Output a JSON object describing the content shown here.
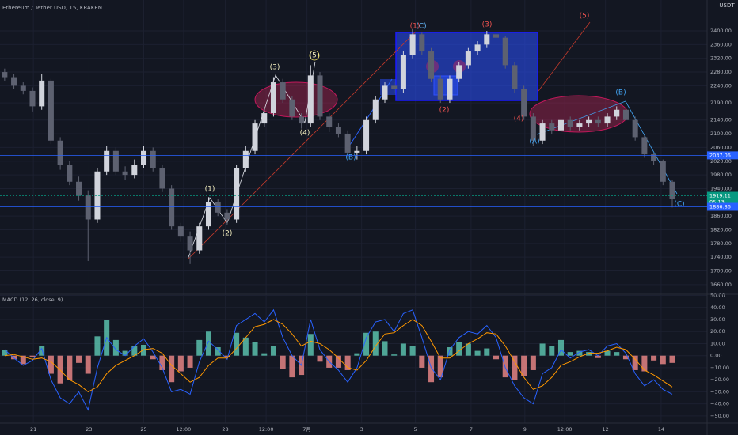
{
  "header": {
    "symbol": "Ethereum / Tether USD, 15, KRAKEN",
    "currency": "USDT"
  },
  "chart_data": [
    {
      "type": "candlestick",
      "x": [
        0,
        1,
        2,
        3,
        4,
        5,
        6,
        7,
        8,
        9,
        10,
        11,
        12,
        13,
        14,
        15,
        16,
        17,
        18,
        19,
        20,
        21,
        22,
        23,
        24,
        25,
        26,
        27,
        28,
        29,
        30,
        31,
        32,
        33,
        34,
        35,
        36,
        37,
        38,
        39,
        40,
        41,
        42,
        43,
        44,
        45,
        46,
        47,
        48,
        49,
        50,
        51,
        52,
        53,
        54,
        55,
        56,
        57,
        58,
        59,
        60,
        61,
        62,
        63,
        64,
        65,
        66,
        67,
        68,
        69,
        70,
        71,
        72
      ],
      "open": [
        2280,
        2265,
        2240,
        2225,
        2180,
        2255,
        2080,
        2010,
        1960,
        1920,
        1850,
        1990,
        2050,
        1990,
        1980,
        2010,
        2050,
        2000,
        1940,
        1830,
        1800,
        1760,
        1830,
        1900,
        1870,
        1850,
        2000,
        2050,
        2130,
        2160,
        2250,
        2200,
        2150,
        2130,
        2270,
        2150,
        2120,
        2100,
        2045,
        2050,
        2140,
        2200,
        2240,
        2230,
        2330,
        2390,
        2340,
        2260,
        2200,
        2260,
        2300,
        2340,
        2360,
        2390,
        2380,
        2300,
        2230,
        2150,
        2080,
        2130,
        2110,
        2140,
        2120,
        2130,
        2140,
        2130,
        2150,
        2170,
        2140,
        2090,
        2040,
        2020,
        1960
      ],
      "high": [
        2290,
        2275,
        2250,
        2235,
        2275,
        2260,
        2090,
        2020,
        1975,
        1935,
        2000,
        2065,
        2060,
        2005,
        2025,
        2065,
        2060,
        2010,
        1950,
        1840,
        1815,
        1840,
        1915,
        1910,
        1880,
        2010,
        2065,
        2140,
        2175,
        2265,
        2260,
        2210,
        2160,
        2300,
        2280,
        2160,
        2130,
        2110,
        2065,
        2150,
        2210,
        2250,
        2250,
        2340,
        2405,
        2395,
        2350,
        2270,
        2270,
        2310,
        2350,
        2370,
        2400,
        2395,
        2385,
        2310,
        2240,
        2160,
        2140,
        2140,
        2150,
        2150,
        2140,
        2150,
        2150,
        2160,
        2180,
        2175,
        2150,
        2095,
        2045,
        2025,
        1965
      ],
      "low": [
        2255,
        2230,
        2215,
        2165,
        2170,
        2070,
        1995,
        1950,
        1905,
        1729,
        1840,
        1980,
        1980,
        1965,
        1970,
        2000,
        1990,
        1930,
        1820,
        1785,
        1720,
        1750,
        1820,
        1860,
        1835,
        1840,
        1990,
        2040,
        2120,
        2150,
        2190,
        2140,
        2115,
        2120,
        2140,
        2105,
        2090,
        2030,
        2025,
        2040,
        2130,
        2190,
        2220,
        2220,
        2320,
        2330,
        2250,
        2190,
        2190,
        2250,
        2290,
        2330,
        2350,
        2370,
        2290,
        2220,
        2140,
        2065,
        2070,
        2100,
        2100,
        2110,
        2110,
        2120,
        2120,
        2120,
        2140,
        2130,
        2080,
        2030,
        2010,
        1950,
        1885
      ],
      "close": [
        2265,
        2240,
        2225,
        2180,
        2255,
        2080,
        2010,
        1960,
        1920,
        1850,
        1990,
        2050,
        1990,
        1980,
        2010,
        2050,
        2000,
        1940,
        1830,
        1800,
        1760,
        1830,
        1900,
        1870,
        1850,
        2000,
        2050,
        2130,
        2160,
        2250,
        2200,
        2150,
        2130,
        2270,
        2150,
        2120,
        2100,
        2045,
        2050,
        2140,
        2200,
        2240,
        2230,
        2330,
        2390,
        2340,
        2260,
        2200,
        2260,
        2300,
        2340,
        2360,
        2390,
        2380,
        2300,
        2230,
        2150,
        2080,
        2130,
        2110,
        2140,
        2120,
        2130,
        2140,
        2130,
        2150,
        2170,
        2140,
        2090,
        2040,
        2020,
        1960,
        1910
      ],
      "up_color": "#d1d4dc",
      "down_color": "#5d6170",
      "xlim": [
        -0.5,
        75.5
      ],
      "ylim": [
        1632,
        2490
      ],
      "yticks": [
        {
          "value": 1660,
          "label": "1660.00"
        },
        {
          "value": 1700,
          "label": "1700.00"
        },
        {
          "value": 1740,
          "label": "1740.00"
        },
        {
          "value": 1780,
          "label": "1780.00"
        },
        {
          "value": 1820,
          "label": "1820.00"
        },
        {
          "value": 1860,
          "label": "1860.00"
        },
        {
          "value": 1940,
          "label": "1940.00"
        },
        {
          "value": 1980,
          "label": "1980.00"
        },
        {
          "value": 2020,
          "label": "2020.00"
        },
        {
          "value": 2060,
          "label": "2060.00"
        },
        {
          "value": 2100,
          "label": "2100.00"
        },
        {
          "value": 2140,
          "label": "2140.00"
        },
        {
          "value": 2190,
          "label": "2190.00"
        },
        {
          "value": 2240,
          "label": "2240.00"
        },
        {
          "value": 2280,
          "label": "2280.00"
        },
        {
          "value": 2320,
          "label": "2320.00"
        },
        {
          "value": 2360,
          "label": "2360.00"
        },
        {
          "value": 2400,
          "label": "2400.00"
        }
      ],
      "xticks": [
        {
          "value": 3.1,
          "label": "21"
        },
        {
          "value": 9.1,
          "label": "23"
        },
        {
          "value": 15,
          "label": "25"
        },
        {
          "value": 19.3,
          "label": "12:00"
        },
        {
          "value": 23.8,
          "label": "28"
        },
        {
          "value": 28.2,
          "label": "12:00"
        },
        {
          "value": 32.6,
          "label": "7月"
        },
        {
          "value": 38.5,
          "label": "3"
        },
        {
          "value": 44.3,
          "label": "5"
        },
        {
          "value": 50.3,
          "label": "7"
        },
        {
          "value": 56.1,
          "label": "9"
        },
        {
          "value": 60.4,
          "label": "12:00"
        },
        {
          "value": 64.8,
          "label": "12"
        },
        {
          "value": 70.8,
          "label": "14"
        }
      ],
      "price_lines": [
        2037.06,
        1919.11,
        1886.86
      ],
      "price_line_colors": [
        "#2962ff",
        "#089981",
        "#2962ff"
      ],
      "countdown": "05:13",
      "annotations": [
        "(1)",
        "(2)",
        "(3)",
        "(4)",
        "(5)",
        "(B)",
        "(A)",
        "(B)",
        "(C)",
        "(1)",
        "(C)",
        "(2)",
        "(3)",
        "(4)",
        "(5)"
      ]
    },
    {
      "type": "macd",
      "title": "MACD (12, 26, close, 9)",
      "ylim": [
        -56,
        51
      ],
      "yticks": [
        {
          "value": 50,
          "label": "50.00"
        },
        {
          "value": 40,
          "label": "40.00"
        },
        {
          "value": 30,
          "label": "30.00"
        },
        {
          "value": 20,
          "label": "20.00"
        },
        {
          "value": 10,
          "label": "10.00"
        },
        {
          "value": 0,
          "label": "0.00"
        },
        {
          "value": -10,
          "label": "−10.00"
        },
        {
          "value": -20,
          "label": "−20.00"
        },
        {
          "value": -30,
          "label": "−30.00"
        },
        {
          "value": -40,
          "label": "−40.00"
        },
        {
          "value": -50,
          "label": "−50.00"
        }
      ],
      "histogram": {
        "up_color": "#5fcbb5",
        "down_color": "#f28b8b",
        "values": [
          5,
          -3,
          -7,
          -1,
          8,
          -15,
          -23,
          -20,
          -6,
          -15,
          16,
          30,
          13,
          4,
          8,
          9,
          -3,
          -12,
          -22,
          -13,
          -10,
          13,
          20,
          7,
          -1,
          19,
          15,
          11,
          2,
          8,
          -11,
          -18,
          -16,
          18,
          -5,
          -10,
          -10,
          -12,
          2,
          19,
          20,
          12,
          1,
          10,
          8,
          -10,
          -22,
          -18,
          7,
          11,
          10,
          4,
          6,
          -3,
          -18,
          -20,
          -17,
          -12,
          10,
          8,
          13,
          3,
          4,
          3,
          -2,
          4,
          3,
          -3,
          -12,
          -13,
          -4,
          -7,
          -6
        ]
      },
      "series": [
        {
          "color": "#2962ff",
          "values": [
            5,
            -2,
            -8,
            -4,
            6,
            -20,
            -35,
            -40,
            -30,
            -45,
            -10,
            15,
            5,
            0,
            8,
            14,
            3,
            -10,
            -30,
            -28,
            -32,
            -5,
            12,
            5,
            -3,
            25,
            30,
            35,
            28,
            38,
            15,
            0,
            -8,
            30,
            5,
            -5,
            -12,
            -22,
            -10,
            15,
            28,
            30,
            20,
            35,
            38,
            15,
            -10,
            -20,
            5,
            15,
            20,
            18,
            25,
            15,
            -10,
            -25,
            -35,
            -40,
            -15,
            -10,
            5,
            -2,
            3,
            5,
            0,
            8,
            10,
            2,
            -15,
            -25,
            -20,
            -28,
            -32
          ]
        },
        {
          "color": "#ff9800",
          "values": [
            0,
            1,
            -1,
            -3,
            -2,
            -5,
            -12,
            -20,
            -24,
            -30,
            -26,
            -15,
            -8,
            -4,
            0,
            5,
            6,
            2,
            -8,
            -15,
            -22,
            -18,
            -8,
            -2,
            -2,
            6,
            15,
            24,
            26,
            30,
            26,
            18,
            8,
            12,
            10,
            5,
            -2,
            -10,
            -12,
            -4,
            8,
            18,
            19,
            25,
            30,
            25,
            12,
            -2,
            -2,
            4,
            10,
            14,
            19,
            18,
            8,
            -5,
            -18,
            -28,
            -25,
            -18,
            -8,
            -5,
            -1,
            2,
            2,
            4,
            7,
            5,
            -3,
            -12,
            -16,
            -21,
            -26
          ]
        }
      ]
    }
  ]
}
